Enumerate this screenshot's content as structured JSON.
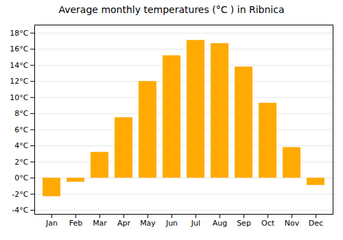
{
  "chart_data": {
    "type": "bar",
    "title": "Average monthly temperatures (°C ) in Ribnica",
    "categories": [
      "Jan",
      "Feb",
      "Mar",
      "Apr",
      "May",
      "Jun",
      "Jul",
      "Aug",
      "Sep",
      "Oct",
      "Nov",
      "Dec"
    ],
    "values": [
      -2.3,
      -0.5,
      3.2,
      7.5,
      12.0,
      15.2,
      17.1,
      16.7,
      13.8,
      9.3,
      3.8,
      -0.9
    ],
    "color": "#FFAA00",
    "ylim": [
      -4.5,
      19
    ],
    "yticks": [
      {
        "value": -4,
        "label": "-4°C"
      },
      {
        "value": -2,
        "label": "-2°C"
      },
      {
        "value": 0,
        "label": "0°C"
      },
      {
        "value": 2,
        "label": "2°C"
      },
      {
        "value": 4,
        "label": "4°C"
      },
      {
        "value": 6,
        "label": "6°C"
      },
      {
        "value": 8,
        "label": "8°C"
      },
      {
        "value": 10,
        "label": "10°C"
      },
      {
        "value": 12,
        "label": "12°C"
      },
      {
        "value": 14,
        "label": "14°C"
      },
      {
        "value": 16,
        "label": "16°C"
      },
      {
        "value": 18,
        "label": "18°C"
      }
    ],
    "grid": true
  }
}
